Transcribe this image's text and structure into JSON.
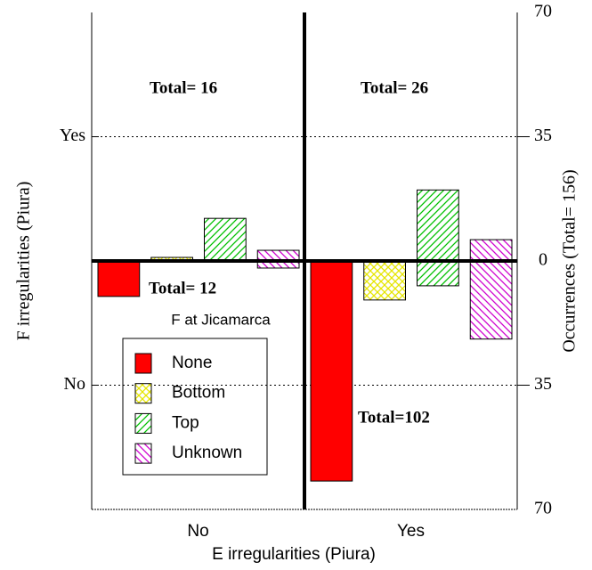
{
  "chart_data": {
    "type": "bar",
    "title": "F at Jicamarca",
    "xlabel": "E irregularities (Piura)",
    "ylabel": "F irregularities (Piura)",
    "y2label": "Occurrences (Total= 156)",
    "categories": [
      "No",
      "Yes"
    ],
    "rows": [
      "Yes",
      "No"
    ],
    "ylim": [
      0,
      70
    ],
    "yticks": [
      0,
      35,
      70
    ],
    "grid": true,
    "annotations": [
      "Total= 16",
      "Total= 26",
      "Total= 12",
      "Total=102"
    ],
    "series": [
      {
        "name": "None",
        "color": "#ff0000",
        "pattern": "solid",
        "up": [
          0,
          0
        ],
        "down": [
          10,
          62
        ]
      },
      {
        "name": "Bottom",
        "color": "#e6e600",
        "pattern": "cross",
        "up": [
          1,
          0
        ],
        "down": [
          0,
          11
        ]
      },
      {
        "name": "Top",
        "color": "#00c000",
        "pattern": "slash",
        "up": [
          12,
          20
        ],
        "down": [
          0,
          7
        ]
      },
      {
        "name": "Unknown",
        "color": "#d000d0",
        "pattern": "backslash",
        "up": [
          3,
          6
        ],
        "down": [
          2,
          22
        ]
      }
    ]
  }
}
